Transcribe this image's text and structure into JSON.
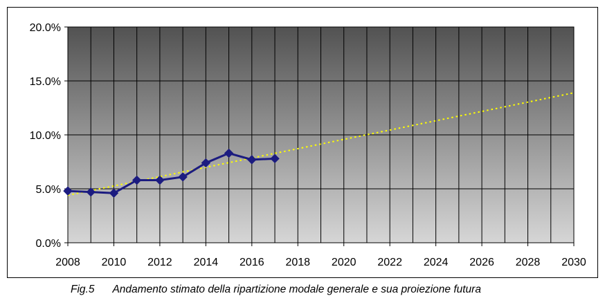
{
  "chart_data": {
    "type": "line",
    "title": "",
    "xlabel": "",
    "ylabel": "",
    "xlim": [
      2008,
      2030
    ],
    "ylim": [
      0,
      0.2
    ],
    "x_ticks": [
      "2008",
      "2010",
      "2012",
      "2014",
      "2016",
      "2018",
      "2020",
      "2022",
      "2024",
      "2026",
      "2028",
      "2030"
    ],
    "y_ticks": [
      "0.0%",
      "5.0%",
      "10.0%",
      "15.0%",
      "20.0%"
    ],
    "grid": true,
    "legend": "none",
    "series": [
      {
        "style": "line-with-diamond-markers",
        "color": "#1c1c80",
        "x": [
          2008,
          2009,
          2010,
          2011,
          2012,
          2013,
          2014,
          2015,
          2016,
          2017
        ],
        "y": [
          0.048,
          0.047,
          0.046,
          0.058,
          0.058,
          0.061,
          0.074,
          0.083,
          0.077,
          0.078
        ]
      },
      {
        "style": "dotted-trendline",
        "color": "#ffff00",
        "x": [
          2008,
          2030
        ],
        "y": [
          0.044,
          0.139
        ]
      }
    ]
  },
  "caption": {
    "figure_label": "Fig.5",
    "text": "Andamento stimato della ripartizione modale generale e sua proiezione futura"
  }
}
